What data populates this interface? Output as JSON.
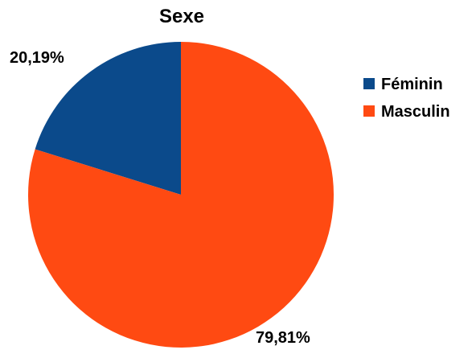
{
  "chart_data": {
    "type": "pie",
    "title": "Sexe",
    "categories": [
      "Féminin",
      "Masculin"
    ],
    "values": [
      20.19,
      79.81
    ],
    "value_labels": [
      "20,19%",
      "79,81%"
    ],
    "colors": [
      "#0b4a8b",
      "#ff4a12"
    ],
    "legend_position": "right",
    "start_angle_deg": 0,
    "direction": "counterclockwise"
  }
}
